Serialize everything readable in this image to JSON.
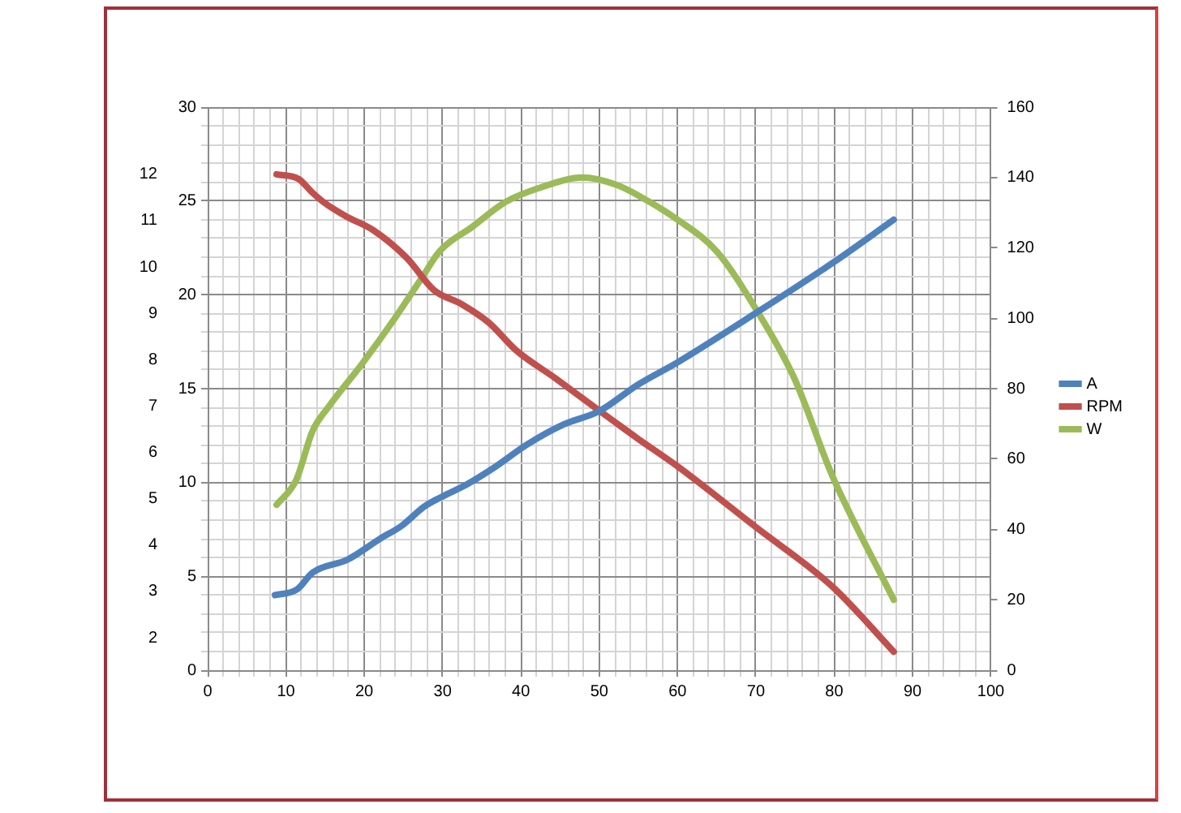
{
  "chart_data": {
    "type": "line",
    "grid": true,
    "legend": "right",
    "marker": "none",
    "line_style": "solid",
    "xlim": [
      0,
      100
    ],
    "xticks": [
      0,
      {
        "value": 2,
        "label": null
      },
      {
        "value": 4,
        "label": null
      },
      {
        "value": 6,
        "label": null
      },
      {
        "value": 8,
        "label": null
      },
      10,
      {
        "value": 12,
        "label": null
      },
      {
        "value": 14,
        "label": null
      },
      {
        "value": 16,
        "label": null
      },
      {
        "value": 18,
        "label": null
      },
      20,
      {
        "value": 22,
        "label": null
      },
      {
        "value": 24,
        "label": null
      },
      {
        "value": 26,
        "label": null
      },
      {
        "value": 28,
        "label": null
      },
      30,
      {
        "value": 32,
        "label": null
      },
      {
        "value": 34,
        "label": null
      },
      {
        "value": 36,
        "label": null
      },
      {
        "value": 38,
        "label": null
      },
      40,
      {
        "value": 42,
        "label": null
      },
      {
        "value": 44,
        "label": null
      },
      {
        "value": 46,
        "label": null
      },
      {
        "value": 48,
        "label": null
      },
      50,
      {
        "value": 52,
        "label": null
      },
      {
        "value": 54,
        "label": null
      },
      {
        "value": 56,
        "label": null
      },
      {
        "value": 58,
        "label": null
      },
      60,
      {
        "value": 62,
        "label": null
      },
      {
        "value": 64,
        "label": null
      },
      {
        "value": 66,
        "label": null
      },
      {
        "value": 68,
        "label": null
      },
      70,
      {
        "value": 72,
        "label": null
      },
      {
        "value": 74,
        "label": null
      },
      {
        "value": 76,
        "label": null
      },
      {
        "value": 78,
        "label": null
      },
      80,
      {
        "value": 82,
        "label": null
      },
      {
        "value": 84,
        "label": null
      },
      {
        "value": 86,
        "label": null
      },
      {
        "value": 88,
        "label": null
      },
      90,
      {
        "value": 92,
        "label": null
      },
      {
        "value": 94,
        "label": null
      },
      {
        "value": 96,
        "label": null
      },
      {
        "value": 98,
        "label": null
      },
      100
    ],
    "ylim": [
      0,
      30
    ],
    "yticks": [
      0,
      {
        "value": 1,
        "label": null
      },
      {
        "value": 2,
        "label": null
      },
      {
        "value": 3,
        "label": null
      },
      {
        "value": 4,
        "label": null
      },
      5,
      {
        "value": 6,
        "label": null
      },
      {
        "value": 7,
        "label": null
      },
      {
        "value": 8,
        "label": null
      },
      {
        "value": 9,
        "label": null
      },
      10,
      {
        "value": 11,
        "label": null
      },
      {
        "value": 12,
        "label": null
      },
      {
        "value": 13,
        "label": null
      },
      {
        "value": 14,
        "label": null
      },
      15,
      {
        "value": 16,
        "label": null
      },
      {
        "value": 17,
        "label": null
      },
      {
        "value": 18,
        "label": null
      },
      {
        "value": 19,
        "label": null
      },
      20,
      {
        "value": 21,
        "label": null
      },
      {
        "value": 22,
        "label": null
      },
      {
        "value": 23,
        "label": null
      },
      {
        "value": 24,
        "label": null
      },
      25,
      {
        "value": 26,
        "label": null
      },
      {
        "value": 27,
        "label": null
      },
      {
        "value": 28,
        "label": null
      },
      {
        "value": 29,
        "label": null
      },
      30
    ],
    "y2lim": [
      0,
      160
    ],
    "y2ticks": [
      0,
      20,
      40,
      60,
      80,
      100,
      120,
      140,
      160
    ],
    "y3lim": [
      1.3,
      13.45
    ],
    "y3ticks": [
      2,
      3,
      4,
      5,
      6,
      7,
      8,
      9,
      10,
      11,
      12
    ],
    "series": [
      {
        "name": "A",
        "color": "#4f81bd",
        "x": [
          8.6,
          11.4,
          13.4,
          17.9,
          22,
          24.8,
          27.6,
          29.7,
          33.1,
          36.6,
          40.7,
          45.5,
          50,
          54.9,
          60,
          69.9,
          79.8,
          87.6
        ],
        "values": [
          4.0,
          4.3,
          5.2,
          5.9,
          7.0,
          7.7,
          8.7,
          9.2,
          9.9,
          10.8,
          12.0,
          13.1,
          13.8,
          15.2,
          16.4,
          19.0,
          21.7,
          24.0
        ]
      },
      {
        "name": "RPM",
        "color": "#c0504d",
        "axis": "y3",
        "x": [
          8.8,
          11.6,
          13.4,
          14.8,
          17.6,
          21.1,
          25.4,
          28.9,
          32.4,
          35.9,
          39.4,
          44.4,
          50,
          54.9,
          60,
          69.9,
          79.8,
          87.6
        ],
        "values": [
          12.0,
          11.9,
          11.6,
          11.4,
          11.1,
          10.8,
          10.2,
          9.5,
          9.2,
          8.8,
          8.2,
          7.6,
          6.9,
          6.3,
          5.7,
          4.4,
          3.1,
          1.7
        ]
      },
      {
        "name": "W",
        "color": "#9bbb59",
        "axis": "y2",
        "x": [
          8.8,
          11.3,
          13.4,
          15.5,
          19.7,
          23.9,
          27.5,
          29.6,
          33.8,
          38.0,
          42.3,
          47.9,
          52.1,
          54.9,
          60,
          65,
          69.9,
          74.9,
          79.8,
          87.6
        ],
        "values": [
          47,
          54,
          68,
          75,
          87,
          100,
          112,
          119,
          126,
          133,
          137,
          140,
          138,
          135,
          128,
          119,
          103,
          83,
          55,
          20
        ]
      }
    ]
  }
}
